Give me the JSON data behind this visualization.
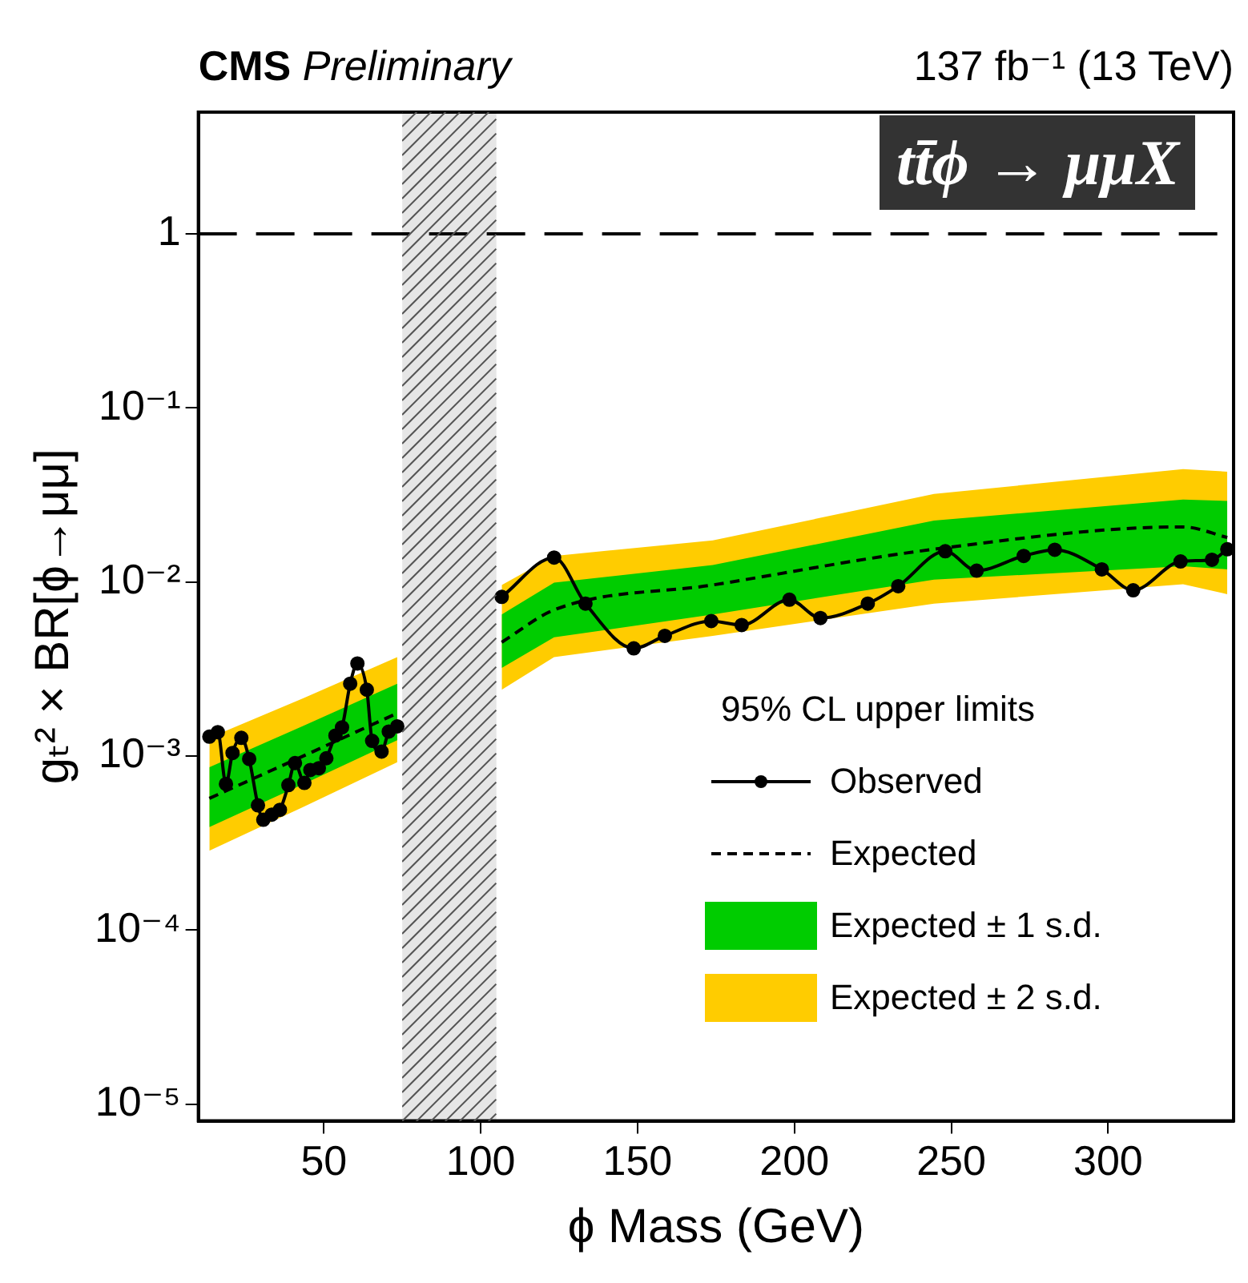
{
  "chart_data": {
    "type": "line",
    "title": "CMS",
    "subtitle": "Preliminary",
    "annotations": [
      "137 fb⁻¹ (13 TeV)",
      "tt̄ϕ → μμX"
    ],
    "xlabel": "ϕ Mass (GeV)",
    "ylabel": "gₜ² × BR[ϕ→μμ]",
    "legend_title": "95% CL upper limits",
    "legend": "bottom right",
    "log": "y",
    "grid": false,
    "xlim": [
      10,
      340
    ],
    "xticks": [
      50,
      100,
      150,
      200,
      250,
      300
    ],
    "ylim": [
      8e-06,
      5
    ],
    "yticks": [
      {
        "value": 1e-05,
        "label": "10⁻⁵"
      },
      {
        "value": 0.0001,
        "label": "10⁻⁴"
      },
      {
        "value": 0.001,
        "label": "10⁻³"
      },
      {
        "value": 0.01,
        "label": "10⁻²"
      },
      {
        "value": 0.1,
        "label": "10⁻¹"
      },
      1
    ],
    "ref_lines": [
      {
        "axis": "y",
        "value": 1,
        "color": "#000000",
        "line_style": "dashed"
      }
    ],
    "bands": [
      {
        "axis": "x",
        "from": 75,
        "to": 105,
        "color": "#e6e6e6"
      }
    ],
    "series": [
      {
        "name": "Observed",
        "type": "line",
        "color": "#000000",
        "marker": "circle",
        "line_style": "solid",
        "x": [
          13.5,
          16.2,
          18.8,
          20.9,
          23.7,
          26.2,
          29,
          30.7,
          33.4,
          36,
          38.7,
          40.8,
          43.8,
          45.7,
          48.4,
          50.8,
          53.7,
          55.8,
          58.4,
          60.7,
          63.7,
          65.4,
          68.4,
          70.7,
          73.4,
          90,
          106.7,
          123.4,
          133.4,
          148.8,
          158.7,
          173.5,
          183.2,
          198.4,
          208.3,
          223.4,
          233.1,
          248.1,
          258.1,
          273.1,
          283,
          298,
          308,
          323.1,
          333.1,
          338
        ],
        "values": [
          0.00129,
          0.00137,
          0.00069,
          0.00104,
          0.00127,
          0.00096,
          0.00052,
          0.00043,
          0.00046,
          0.00049,
          0.00068,
          0.00091,
          0.0007,
          0.00083,
          0.00085,
          0.00097,
          0.00131,
          0.00146,
          0.0026,
          0.0034,
          0.0024,
          0.00122,
          0.00106,
          0.00138,
          0.00148,
          null,
          0.0082,
          0.0138,
          0.0075,
          0.00415,
          0.0049,
          0.00596,
          0.00565,
          0.0079,
          0.0062,
          0.0075,
          0.00945,
          0.015,
          0.0116,
          0.0141,
          0.0153,
          0.0118,
          0.00895,
          0.0131,
          0.0134,
          0.0154
        ]
      },
      {
        "name": "Expected",
        "type": "line",
        "color": "#000000",
        "marker": "none",
        "line_style": "dashed",
        "x": [
          13.5,
          43.5,
          73.4,
          90,
          106.7,
          123.4,
          174,
          244.5,
          323.9,
          338
        ],
        "values": [
          0.00057,
          0.001,
          0.00176,
          null,
          0.0045,
          0.0069,
          0.0096,
          0.0154,
          0.0207,
          0.018
        ]
      },
      {
        "name": "Expected ± 1 s.d.",
        "type": "line",
        "color": "#00cc00",
        "x": [
          13.5,
          43.5,
          73.4,
          90,
          106.7,
          123.4,
          174,
          244.5,
          323.9,
          338
        ],
        "values": [
          null,
          null,
          null,
          null,
          null,
          null,
          null,
          null,
          null,
          null
        ],
        "lower": [
          0.00039,
          0.00069,
          0.00123,
          null,
          0.0032,
          0.0048,
          0.0065,
          0.0103,
          0.0123,
          0.0118
        ],
        "upper": [
          0.00086,
          0.00149,
          0.0026,
          null,
          0.0065,
          0.0099,
          0.0125,
          0.0225,
          0.0297,
          0.0292
        ]
      },
      {
        "name": "Expected ± 2 s.d.",
        "type": "line",
        "color": "#ffcc00",
        "x": [
          13.5,
          43.5,
          73.4,
          90,
          106.7,
          123.4,
          174,
          244.5,
          323.9,
          338
        ],
        "values": [
          null,
          null,
          null,
          null,
          null,
          null,
          null,
          null,
          null,
          null
        ],
        "lower": [
          0.000285,
          0.00051,
          0.00092,
          null,
          0.0024,
          0.0037,
          0.0049,
          0.0075,
          0.0097,
          0.0085
        ],
        "upper": [
          0.00127,
          0.00215,
          0.0037,
          null,
          0.0096,
          0.0141,
          0.0173,
          0.032,
          0.0445,
          0.043
        ]
      }
    ]
  }
}
